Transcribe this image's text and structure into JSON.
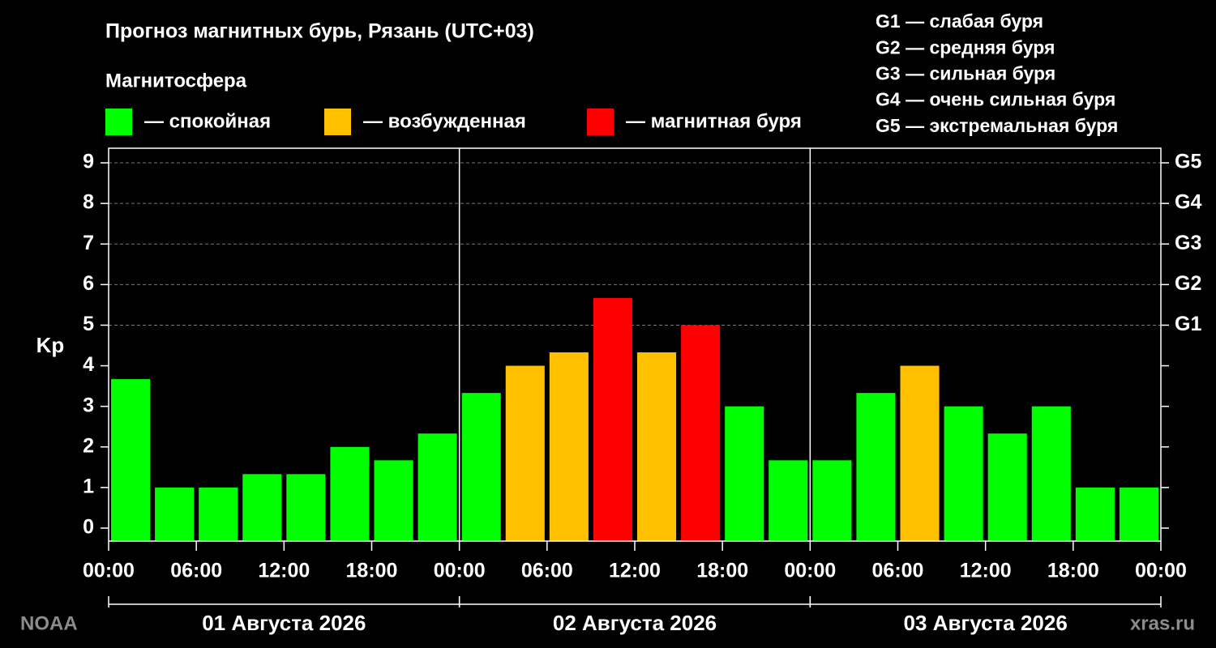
{
  "chart_data": {
    "type": "bar",
    "title": "Прогноз магнитных бурь, Рязань (UTC+03)",
    "legend_title": "Магнитосфера",
    "legend": [
      {
        "color": "#00ff00",
        "label": "— спокойная"
      },
      {
        "color": "#ffc000",
        "label": "— возбужденная"
      },
      {
        "color": "#ff0000",
        "label": "— магнитная буря"
      }
    ],
    "g_legend": [
      "G1 — слабая буря",
      "G2 — средняя буря",
      "G3 — сильная буря",
      "G4 — очень сильная буря",
      "G5 — экстремальная буря"
    ],
    "ylabel": "Kp",
    "x": [
      0,
      3,
      6,
      9,
      12,
      15,
      18,
      21,
      24,
      27,
      30,
      33,
      36,
      39,
      42,
      45,
      48,
      51,
      54,
      57,
      60,
      63,
      66,
      69
    ],
    "values": [
      3.67,
      1,
      1,
      1.33,
      1.33,
      2,
      1.67,
      2.33,
      3.33,
      4,
      4.33,
      5.67,
      4.33,
      5,
      3,
      1.67,
      1.67,
      3.33,
      4,
      3,
      2.33,
      3,
      1,
      1
    ],
    "colors": [
      "#00ff00",
      "#00ff00",
      "#00ff00",
      "#00ff00",
      "#00ff00",
      "#00ff00",
      "#00ff00",
      "#00ff00",
      "#00ff00",
      "#ffc000",
      "#ffc000",
      "#ff0000",
      "#ffc000",
      "#ff0000",
      "#00ff00",
      "#00ff00",
      "#00ff00",
      "#00ff00",
      "#ffc000",
      "#00ff00",
      "#00ff00",
      "#00ff00",
      "#00ff00",
      "#00ff00"
    ],
    "xlim": [
      0,
      72
    ],
    "xticks": [
      {
        "value": 0,
        "label": "00:00"
      },
      {
        "value": 6,
        "label": "06:00"
      },
      {
        "value": 12,
        "label": "12:00"
      },
      {
        "value": 18,
        "label": "18:00"
      },
      {
        "value": 24,
        "label": "00:00"
      },
      {
        "value": 30,
        "label": "06:00"
      },
      {
        "value": 36,
        "label": "12:00"
      },
      {
        "value": 42,
        "label": "18:00"
      },
      {
        "value": 48,
        "label": "00:00"
      },
      {
        "value": 54,
        "label": "06:00"
      },
      {
        "value": 60,
        "label": "12:00"
      },
      {
        "value": 66,
        "label": "18:00"
      },
      {
        "value": 72,
        "label": "00:00"
      }
    ],
    "ylim": [
      -0.32,
      9.36
    ],
    "yticks": [
      0,
      1,
      2,
      3,
      4,
      5,
      6,
      7,
      8,
      9
    ],
    "y2ticks": [
      {
        "value": 5,
        "label": "G1"
      },
      {
        "value": 6,
        "label": "G2"
      },
      {
        "value": 7,
        "label": "G3"
      },
      {
        "value": 8,
        "label": "G4"
      },
      {
        "value": 9,
        "label": "G5"
      }
    ],
    "days": [
      {
        "label": "01 Августа 2026",
        "range": [
          0,
          24
        ]
      },
      {
        "label": "02 Августа 2026",
        "range": [
          24,
          48
        ]
      },
      {
        "label": "03 Августа 2026",
        "range": [
          48,
          72
        ]
      }
    ],
    "source": "NOAA",
    "site": "xras.ru"
  }
}
